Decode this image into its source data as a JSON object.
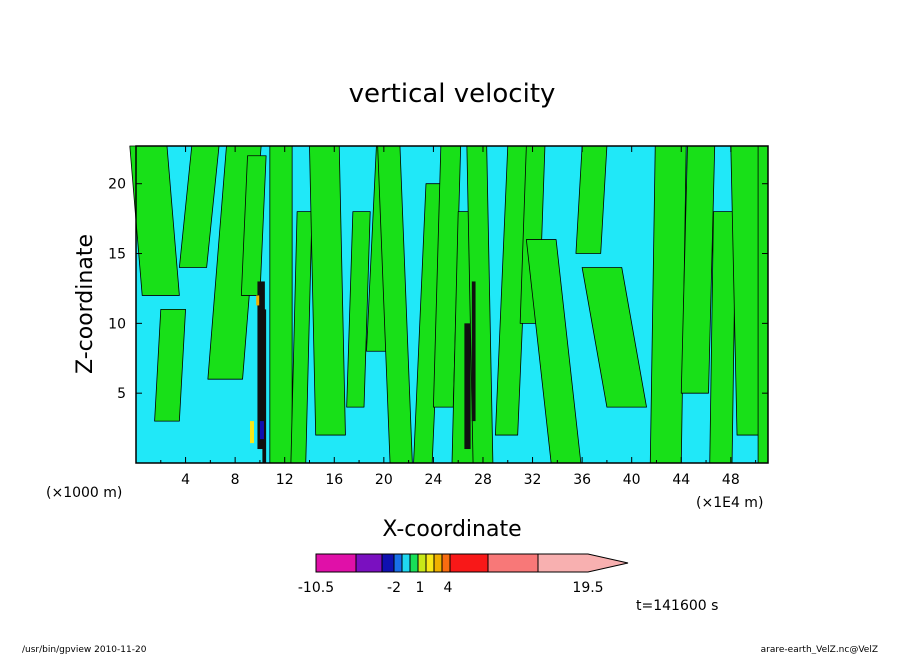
{
  "chart_data": {
    "type": "heatmap",
    "title": "vertical velocity",
    "xlabel": "X-coordinate",
    "ylabel": "Z-coordinate",
    "x_unit_left": "(×1000 m)",
    "x_unit_right": "(×1E4 m)",
    "x_ticks": [
      "4",
      "8",
      "12",
      "16",
      "20",
      "24",
      "28",
      "32",
      "36",
      "40",
      "44",
      "48"
    ],
    "y_ticks": [
      "5",
      "10",
      "15",
      "20"
    ],
    "xlim": [
      0,
      51
    ],
    "ylim": [
      0,
      22.7
    ],
    "grid": false,
    "colorbar": {
      "labels": [
        "-10.5",
        "-2",
        "1",
        "4",
        "19.5"
      ],
      "levels": [
        -10.5,
        -6,
        -4,
        -2,
        -1,
        0,
        1,
        2,
        3,
        4,
        7,
        10,
        14,
        19.5
      ],
      "colors": [
        "#e010a8",
        "#7a10c0",
        "#1010b0",
        "#1870e8",
        "#20d8f0",
        "#18e058",
        "#c8e818",
        "#f8e818",
        "#f0b000",
        "#f86c10",
        "#f81818",
        "#f87878",
        "#f8b0b0"
      ]
    },
    "field_colors": {
      "background": "#20e8f8",
      "updraft": "#18e018",
      "strong": "#101010"
    },
    "time_label": "t=141600 s"
  },
  "footer": {
    "left": "/usr/bin/gpview   2010-11-20",
    "right": "arare-earth_VelZ.nc@VelZ"
  }
}
